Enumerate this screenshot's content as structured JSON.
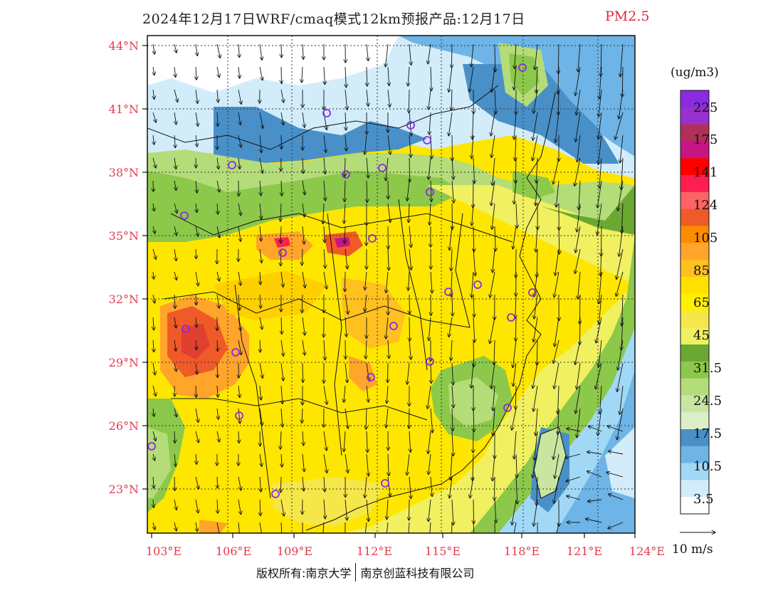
{
  "title": "2024年12月17日WRF/cmaq模式12km预报产品:12月17日",
  "species": "PM2.5",
  "units": "(ug/m3)",
  "lat_labels": [
    "44°N",
    "41°N",
    "38°N",
    "35°N",
    "32°N",
    "29°N",
    "26°N",
    "23°N"
  ],
  "lon_labels": [
    "103°E",
    "106°E",
    "109°E",
    "112°E",
    "115°E",
    "118°E",
    "121°E",
    "124°E"
  ],
  "colorbar": {
    "labels": [
      "225",
      "175",
      "141",
      "124",
      "105",
      "85",
      "65",
      "45",
      "31.5",
      "24.5",
      "17.5",
      "10.5",
      "3.5"
    ],
    "colors": [
      "#8a2be2",
      "#9b30d0",
      "#b0305a",
      "#c71585",
      "#ff0000",
      "#ff1e50",
      "#ff6464",
      "#f05a28",
      "#ff8c00",
      "#ffa52a",
      "#ffc020",
      "#ffe000",
      "#fff000",
      "#f5e64a",
      "#f0f060",
      "#6aa832",
      "#8cc84a",
      "#b4dc78",
      "#c8e6a0",
      "#dcefc8",
      "#4a90c8",
      "#6eb4e6",
      "#a0d8f5",
      "#d2ecfa",
      "#ffffff"
    ]
  },
  "vector_label": "10 m/s",
  "copyright": {
    "left": "版权所有:南京大学",
    "right": "南京创蓝科技有限公司"
  },
  "cities_legend_note": ""
}
